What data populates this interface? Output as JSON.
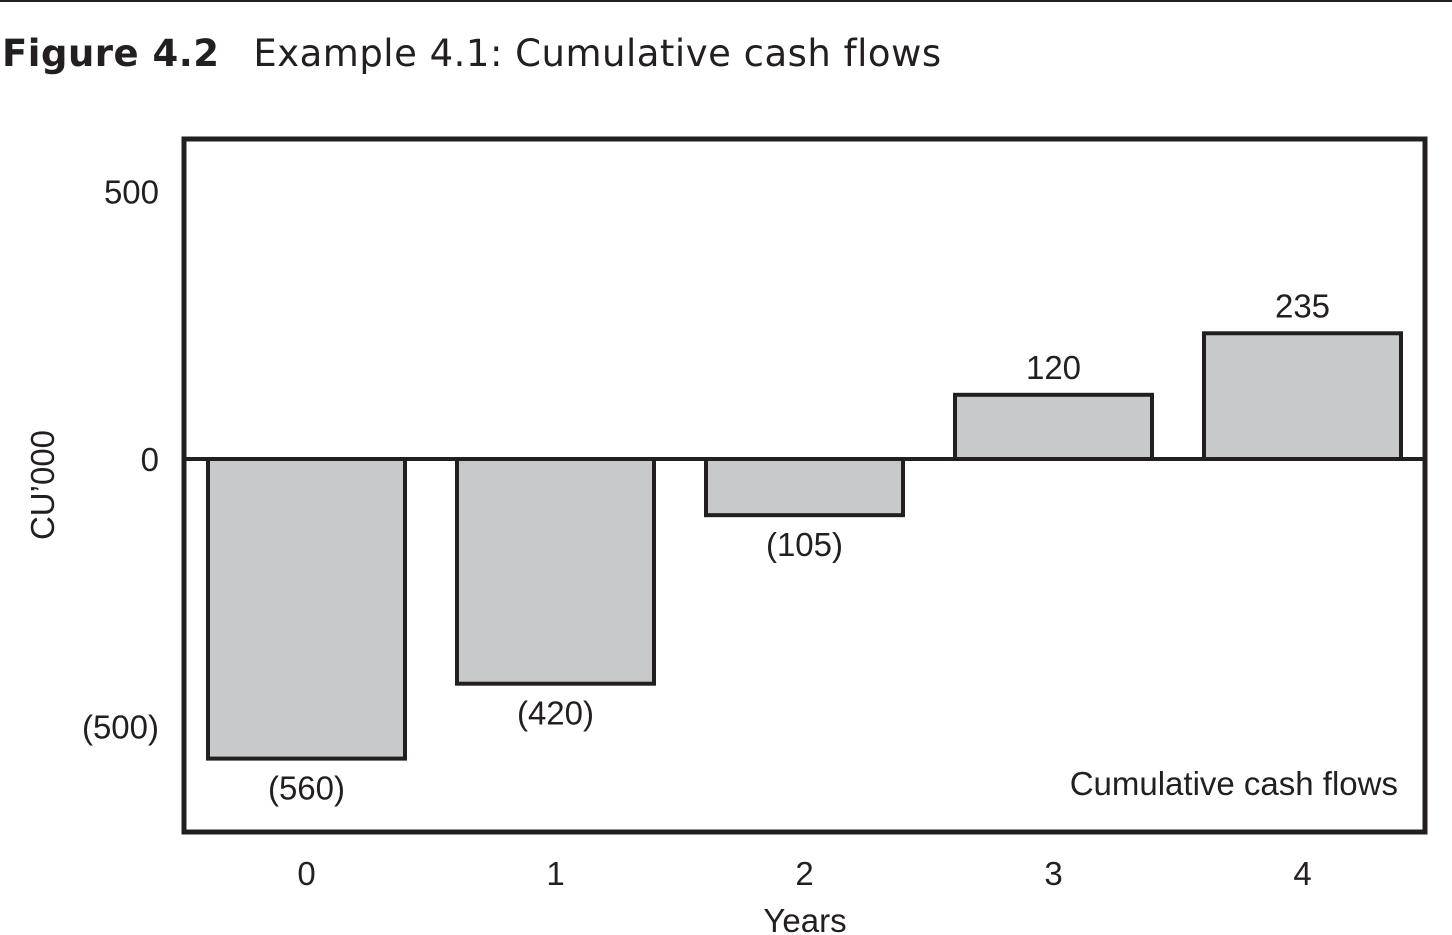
{
  "figure": {
    "label": "Figure 4.2",
    "title": "Example 4.1: Cumulative cash flows"
  },
  "chart_data": {
    "type": "bar",
    "categories": [
      "0",
      "1",
      "2",
      "3",
      "4"
    ],
    "values": [
      -560,
      -420,
      -105,
      120,
      235
    ],
    "data_labels": [
      "(560)",
      "(420)",
      "(105)",
      "120",
      "235"
    ],
    "xlabel": "Years",
    "ylabel": "CU’000",
    "ylim": [
      -700,
      600
    ],
    "yticks": [
      {
        "value": 500,
        "label": "500"
      },
      {
        "value": 0,
        "label": "0"
      },
      {
        "value": -500,
        "label": "(500)"
      }
    ],
    "legend": {
      "text": "Cumulative cash flows",
      "placement": "bottom-right"
    },
    "grid": false,
    "colors": {
      "bar_fill": "#c8c9cb",
      "stroke": "#231f20"
    }
  }
}
